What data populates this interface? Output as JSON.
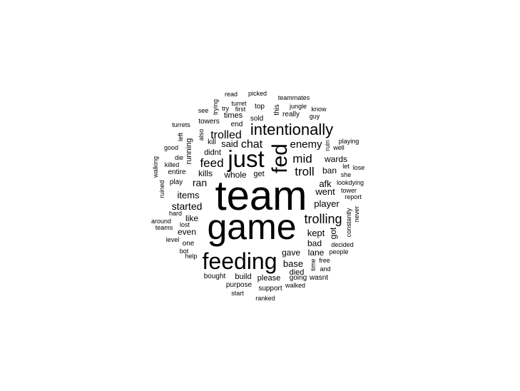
{
  "word_cloud": {
    "color": "#000000",
    "background": "#ffffff",
    "words": [
      "team",
      "game",
      "feeding",
      "just",
      "fed",
      "intentionally",
      "trolling",
      "feed",
      "trolled",
      "troll",
      "enemy",
      "mid",
      "chat",
      "said",
      "kills",
      "ran",
      "items",
      "started",
      "even",
      "like",
      "whole",
      "player",
      "went",
      "afk",
      "kept",
      "lane",
      "base",
      "gave",
      "bad",
      "got",
      "ban",
      "wards",
      "build",
      "please",
      "died",
      "support",
      "purpose",
      "bought",
      "start",
      "ranked",
      "walked",
      "going",
      "wasnt",
      "and",
      "free",
      "time",
      "people",
      "decided",
      "constantly",
      "never",
      "report",
      "tower",
      "lookdying",
      "she",
      "lose",
      "let",
      "ruin",
      "well",
      "playing",
      "guy",
      "know",
      "jungle",
      "teammates",
      "picked",
      "read",
      "turret",
      "first",
      "top",
      "this",
      "really",
      "sold",
      "times",
      "end",
      "trying",
      "try",
      "see",
      "towers",
      "turrets",
      "also",
      "left",
      "kill",
      "running",
      "didnt",
      "good",
      "die",
      "killed",
      "entire",
      "walking",
      "play",
      "ruined",
      "hard",
      "around",
      "teams",
      "lost",
      "level",
      "one",
      "bot",
      "help",
      "get"
    ]
  }
}
